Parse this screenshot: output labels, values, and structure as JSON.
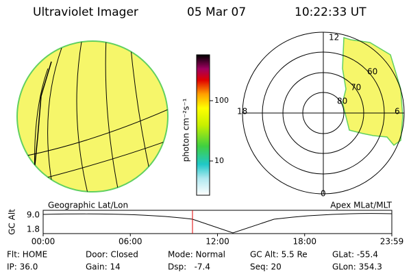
{
  "header": {
    "instrument": "Ultraviolet Imager",
    "date": "05 Mar 07",
    "time": "10:22:33 UT"
  },
  "colorbar": {
    "label": "photon cm⁻²s⁻¹",
    "ticks": [
      "100",
      "10"
    ]
  },
  "panels": {
    "left_label": "Geographic Lat/Lon",
    "right_label": "Apex MLat/MLT"
  },
  "polar": {
    "mlt_labels": [
      "12",
      "18",
      "0",
      "6"
    ],
    "lat_labels": [
      "60",
      "70",
      "80"
    ]
  },
  "altitude": {
    "axis_label": "GC Alt",
    "yticks": [
      "9.0",
      "1.8"
    ],
    "xticks": [
      "00:00",
      "06:00",
      "12:00",
      "18:00",
      "23:59"
    ]
  },
  "status": {
    "rows": [
      [
        "Flt: HOME",
        "Door: Closed",
        "Mode: Normal",
        "GC Alt: 5.5 Re",
        "GLat: -55.4"
      ],
      [
        "IP: 36.0",
        "Gain: 14",
        "Dsp:   -7.4",
        "Seq: 20",
        "GLon: 354.3"
      ]
    ]
  }
}
